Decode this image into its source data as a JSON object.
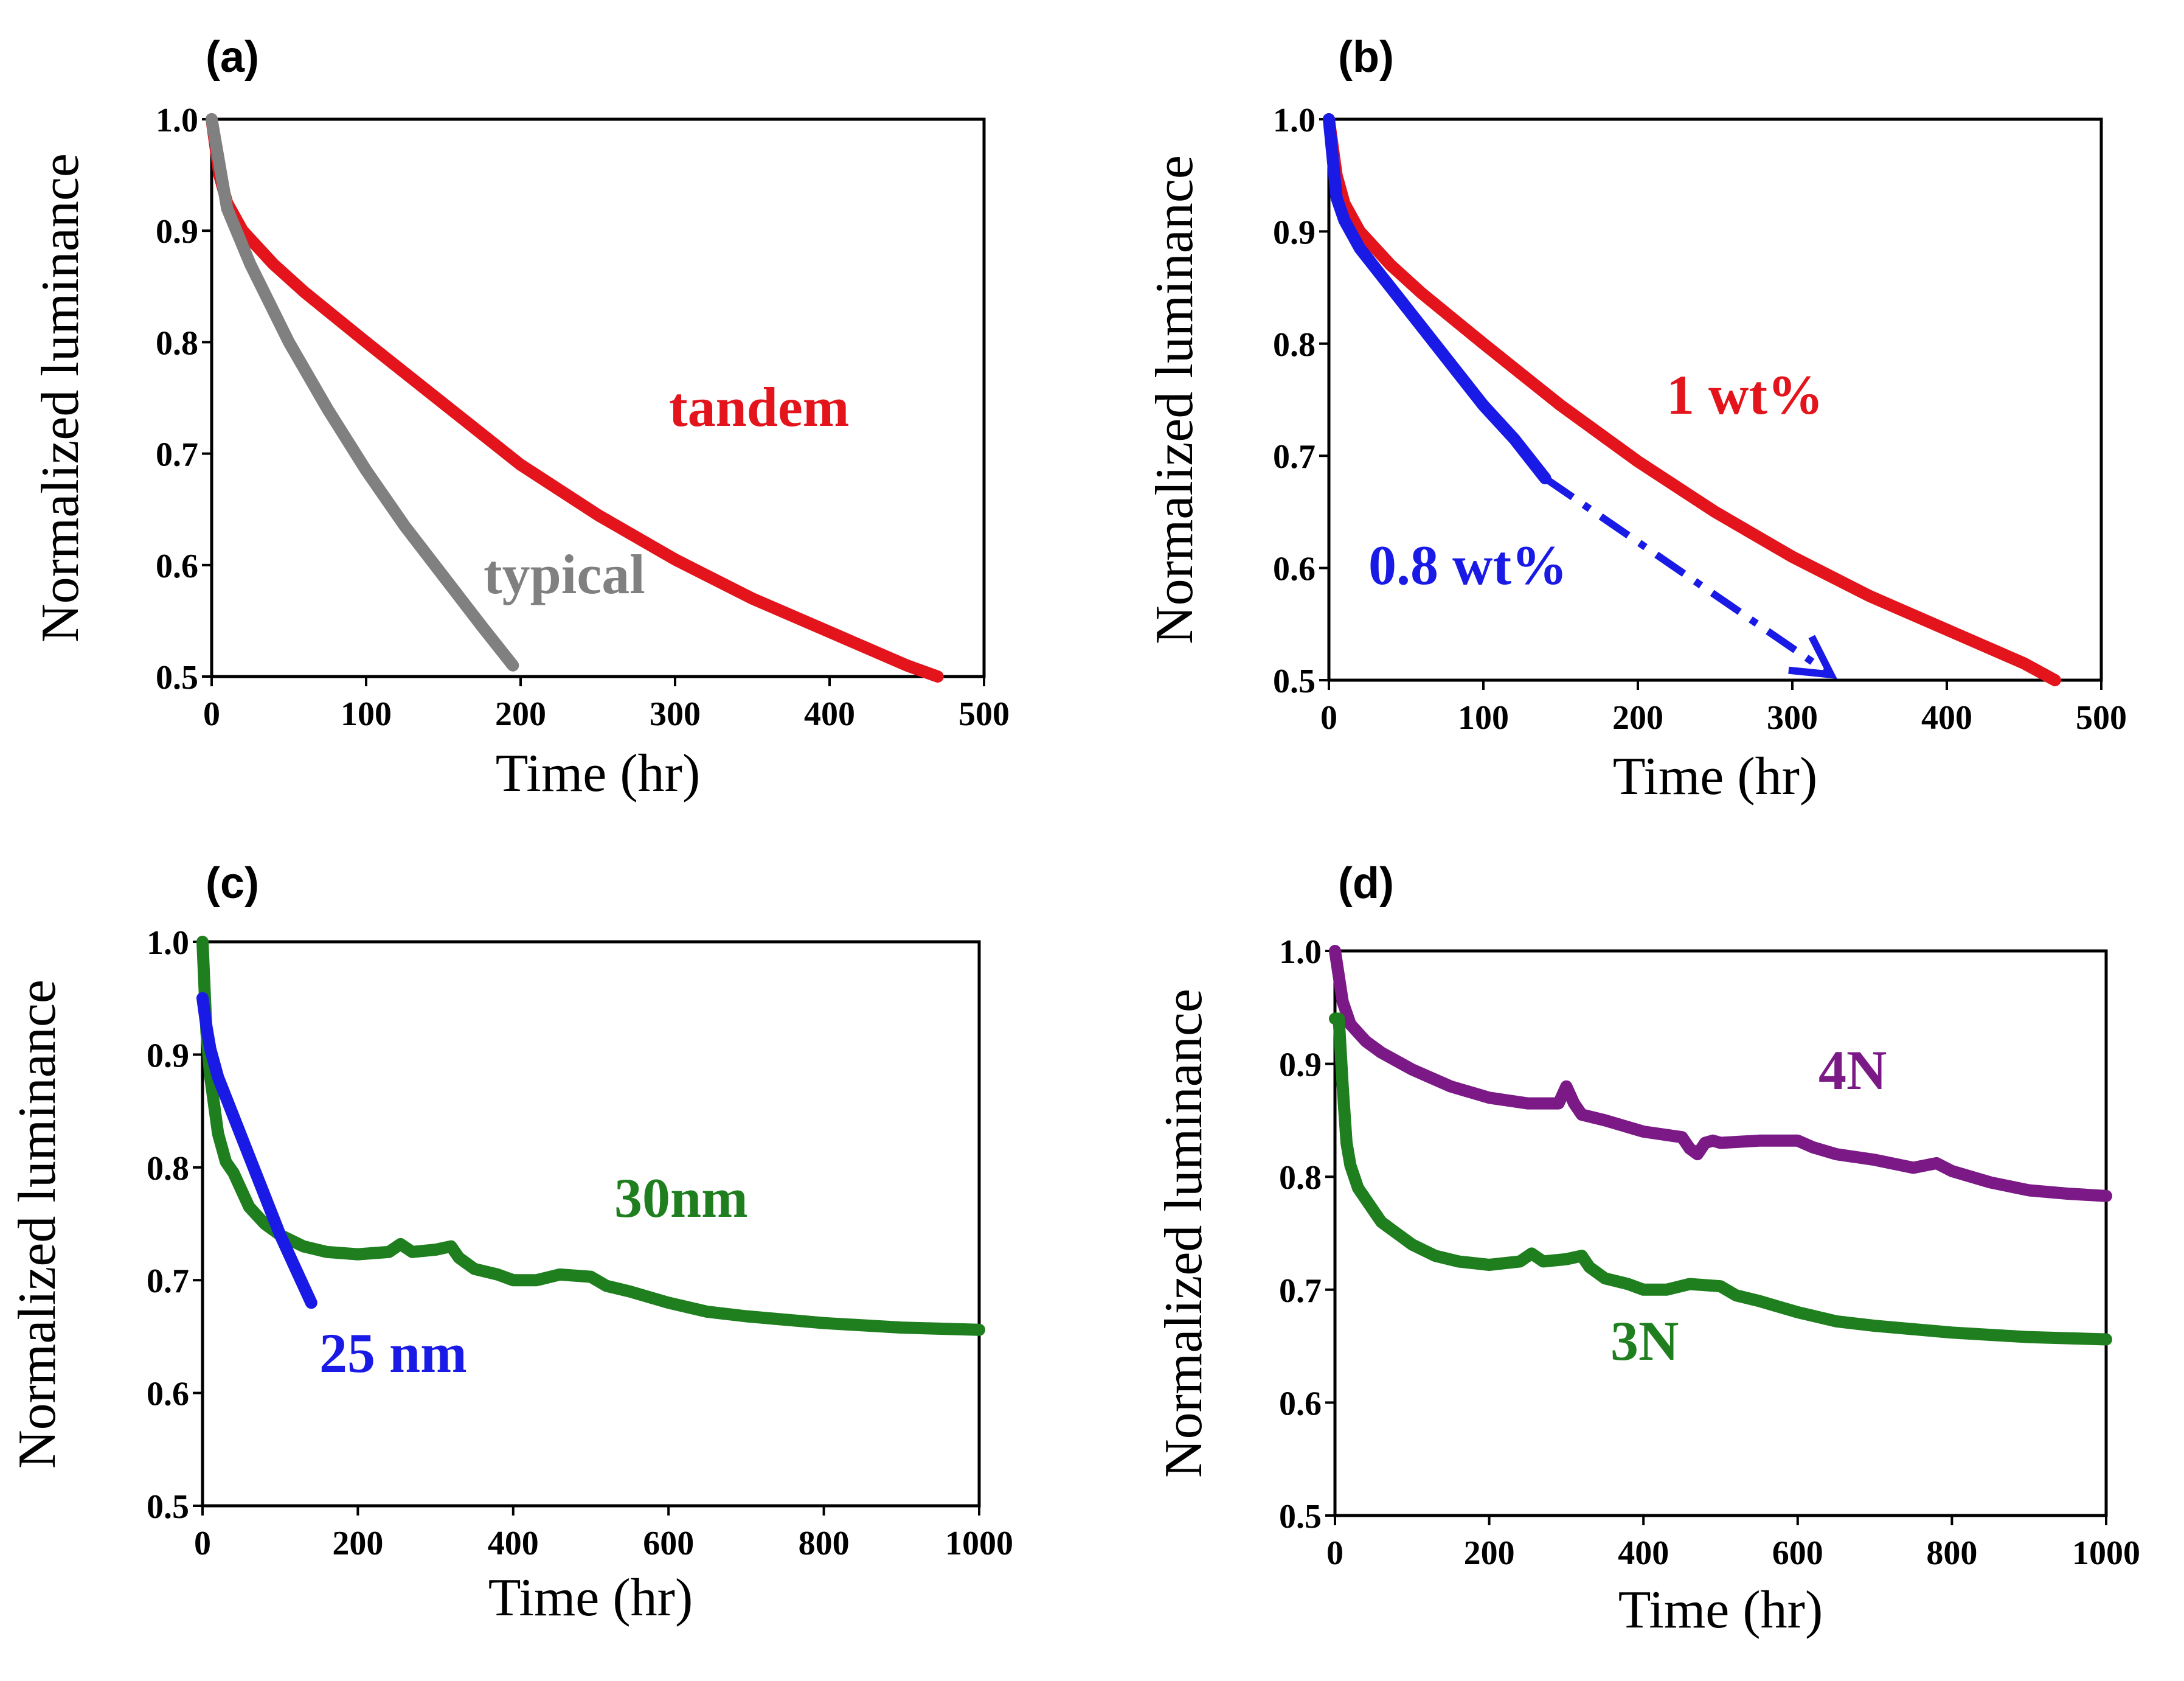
{
  "chart_data": [
    {
      "panel": "(a)",
      "type": "line",
      "xlabel": "Time (hr)",
      "ylabel": "Normalized luminance",
      "xlim": [
        0,
        500
      ],
      "ylim": [
        0.5,
        1.0
      ],
      "xticks": [
        "0",
        "100",
        "200",
        "300",
        "400",
        "500"
      ],
      "yticks": [
        "0.5",
        "0.6",
        "0.7",
        "0.8",
        "0.9",
        "1.0"
      ],
      "series": [
        {
          "name": "tandem",
          "color": "#e3141b",
          "x": [
            0,
            5,
            10,
            20,
            40,
            60,
            100,
            150,
            200,
            250,
            300,
            350,
            400,
            450,
            470
          ],
          "y": [
            1.0,
            0.95,
            0.925,
            0.9,
            0.87,
            0.845,
            0.8,
            0.745,
            0.69,
            0.645,
            0.605,
            0.57,
            0.54,
            0.51,
            0.5
          ]
        },
        {
          "name": "typical",
          "color": "#808080",
          "x": [
            0,
            10,
            25,
            50,
            75,
            100,
            125,
            150,
            175,
            195
          ],
          "y": [
            1.0,
            0.92,
            0.87,
            0.8,
            0.74,
            0.685,
            0.635,
            0.59,
            0.545,
            0.51
          ]
        }
      ],
      "annotations": [
        "tandem",
        "typical"
      ]
    },
    {
      "panel": "(b)",
      "type": "line",
      "xlabel": "Time (hr)",
      "ylabel": "Normalized luminance",
      "xlim": [
        0,
        500
      ],
      "ylim": [
        0.5,
        1.0
      ],
      "xticks": [
        "0",
        "100",
        "200",
        "300",
        "400",
        "500"
      ],
      "yticks": [
        "0.5",
        "0.6",
        "0.7",
        "0.8",
        "0.9",
        "1.0"
      ],
      "series": [
        {
          "name": "1 wt%",
          "color": "#e3141b",
          "x": [
            0,
            5,
            10,
            20,
            40,
            60,
            100,
            150,
            200,
            250,
            300,
            350,
            400,
            450,
            470
          ],
          "y": [
            1.0,
            0.95,
            0.925,
            0.9,
            0.87,
            0.845,
            0.8,
            0.745,
            0.695,
            0.65,
            0.61,
            0.575,
            0.545,
            0.515,
            0.5
          ]
        },
        {
          "name": "0.8 wt%",
          "color": "#1a1ae6",
          "x": [
            0,
            5,
            10,
            20,
            40,
            60,
            80,
            100,
            120,
            140
          ],
          "y": [
            1.0,
            0.93,
            0.91,
            0.885,
            0.85,
            0.815,
            0.78,
            0.745,
            0.715,
            0.68
          ]
        }
      ],
      "arrow": {
        "from": [
          140,
          0.68
        ],
        "to": [
          325,
          0.505
        ]
      },
      "annotations": [
        "1 wt%",
        "0.8 wt%"
      ]
    },
    {
      "panel": "(c)",
      "type": "line",
      "xlabel": "Time (hr)",
      "ylabel": "Normalized luminance",
      "xlim": [
        0,
        1000
      ],
      "ylim": [
        0.5,
        1.0
      ],
      "xticks": [
        "0",
        "200",
        "400",
        "600",
        "800",
        "1000"
      ],
      "yticks": [
        "0.5",
        "0.6",
        "0.7",
        "0.8",
        "0.9",
        "1.0"
      ],
      "series": [
        {
          "name": "30nm",
          "color": "#1f7f1f",
          "x": [
            0,
            5,
            10,
            20,
            30,
            40,
            60,
            80,
            100,
            130,
            160,
            200,
            240,
            255,
            270,
            300,
            320,
            330,
            350,
            380,
            400,
            430,
            460,
            500,
            520,
            550,
            600,
            650,
            700,
            800,
            900,
            1000
          ],
          "y": [
            1.0,
            0.92,
            0.88,
            0.83,
            0.805,
            0.795,
            0.765,
            0.75,
            0.74,
            0.73,
            0.725,
            0.723,
            0.725,
            0.732,
            0.725,
            0.727,
            0.73,
            0.72,
            0.71,
            0.705,
            0.7,
            0.7,
            0.705,
            0.703,
            0.695,
            0.69,
            0.68,
            0.672,
            0.668,
            0.662,
            0.658,
            0.656
          ]
        },
        {
          "name": "25 nm",
          "color": "#1a1ae6",
          "x": [
            0,
            5,
            10,
            20,
            40,
            60,
            80,
            100,
            120,
            140
          ],
          "y": [
            0.95,
            0.925,
            0.905,
            0.88,
            0.845,
            0.81,
            0.775,
            0.74,
            0.71,
            0.68
          ]
        }
      ],
      "annotations": [
        "30nm",
        "25 nm"
      ]
    },
    {
      "panel": "(d)",
      "type": "line",
      "xlabel": "Time (hr)",
      "ylabel": "Normalized luminance",
      "xlim": [
        0,
        1000
      ],
      "ylim": [
        0.5,
        1.0
      ],
      "xticks": [
        "0",
        "200",
        "400",
        "600",
        "800",
        "1000"
      ],
      "yticks": [
        "0.5",
        "0.6",
        "0.7",
        "0.8",
        "0.9",
        "1.0"
      ],
      "series": [
        {
          "name": "4N",
          "color": "#7b1a86",
          "x": [
            0,
            10,
            20,
            40,
            60,
            100,
            150,
            200,
            250,
            290,
            300,
            310,
            320,
            350,
            400,
            450,
            460,
            470,
            480,
            490,
            500,
            550,
            600,
            620,
            650,
            700,
            750,
            780,
            800,
            850,
            900,
            950,
            1000
          ],
          "y": [
            1.0,
            0.955,
            0.935,
            0.92,
            0.91,
            0.895,
            0.88,
            0.87,
            0.865,
            0.865,
            0.88,
            0.865,
            0.855,
            0.85,
            0.84,
            0.835,
            0.825,
            0.82,
            0.83,
            0.832,
            0.83,
            0.832,
            0.832,
            0.826,
            0.82,
            0.815,
            0.808,
            0.812,
            0.805,
            0.795,
            0.788,
            0.785,
            0.783
          ]
        },
        {
          "name": "3N",
          "color": "#1f7f1f",
          "x": [
            0,
            5,
            10,
            15,
            20,
            30,
            40,
            60,
            80,
            100,
            130,
            160,
            200,
            240,
            255,
            270,
            300,
            320,
            330,
            350,
            380,
            400,
            430,
            460,
            500,
            520,
            550,
            600,
            650,
            700,
            800,
            900,
            1000
          ],
          "y": [
            0.94,
            0.94,
            0.88,
            0.83,
            0.81,
            0.79,
            0.78,
            0.76,
            0.75,
            0.74,
            0.73,
            0.725,
            0.722,
            0.725,
            0.732,
            0.725,
            0.727,
            0.73,
            0.72,
            0.71,
            0.705,
            0.7,
            0.7,
            0.705,
            0.703,
            0.695,
            0.69,
            0.68,
            0.672,
            0.668,
            0.662,
            0.658,
            0.656
          ]
        }
      ],
      "annotations": [
        "4N",
        "3N"
      ]
    }
  ]
}
